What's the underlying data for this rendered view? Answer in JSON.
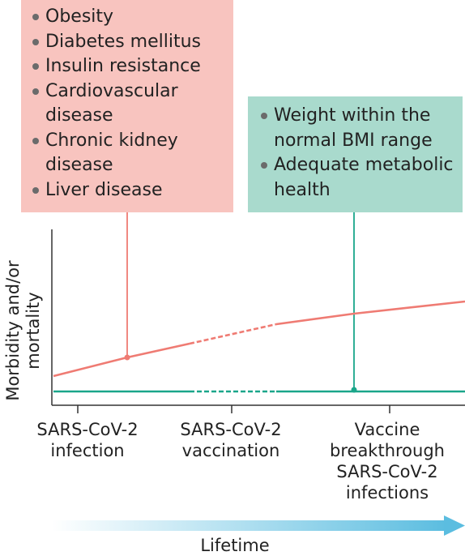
{
  "risk_box": {
    "items": [
      "Obesity",
      "Diabetes mellitus",
      "Insulin resistance",
      "Cardiovascular disease",
      "Chronic kidney disease",
      "Liver disease"
    ],
    "color": "#f8c4bf",
    "line_color": "#ef7b73"
  },
  "healthy_box": {
    "items": [
      "Weight within the normal BMI range",
      "Adequate metabolic health"
    ],
    "color": "#a9dacd",
    "line_color": "#1aa68a"
  },
  "axis": {
    "ylabel_line1": "Morbidity and/or",
    "ylabel_line2": "mortality",
    "xlabel": "Lifetime",
    "arrow_color": "#5bbde0"
  },
  "ticks": {
    "t1_line1": "SARS-CoV-2",
    "t1_line2": "infection",
    "t2_line1": "SARS-CoV-2",
    "t2_line2": "vaccination",
    "t3_line1": "Vaccine",
    "t3_line2": "breakthrough",
    "t3_line3": "SARS-CoV-2",
    "t3_line4": "infections"
  }
}
